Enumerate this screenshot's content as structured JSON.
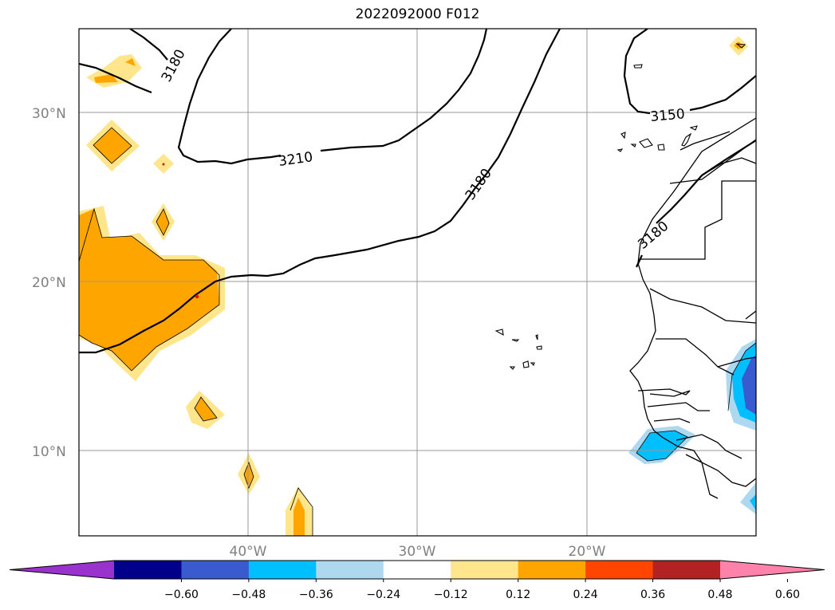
{
  "title": "2022092000 F012",
  "map": {
    "region": "Eastern tropical North Atlantic and West Africa",
    "lon_range": [
      -50,
      -10
    ],
    "lat_range": [
      5,
      35
    ],
    "gridlines": true,
    "lat_labels": [
      "30°N",
      "20°N",
      "10°N"
    ],
    "lon_labels": [
      "40°W",
      "30°W",
      "20°W"
    ],
    "contour_labels": [
      "3180",
      "3210",
      "3180",
      "3150",
      "3180"
    ]
  },
  "colorbar": {
    "extend": "both",
    "ticks": [
      "−0.60",
      "−0.48",
      "−0.36",
      "−0.24",
      "−0.12",
      "0.12",
      "0.24",
      "0.36",
      "0.48",
      "0.60"
    ],
    "colors": [
      "#9a32cd",
      "#00008b",
      "#3a5bcf",
      "#00bfff",
      "#add8f0",
      "#ffffff",
      "#ffe68c",
      "#ffa500",
      "#ff4500",
      "#b22222",
      "#ff82ab"
    ]
  }
}
